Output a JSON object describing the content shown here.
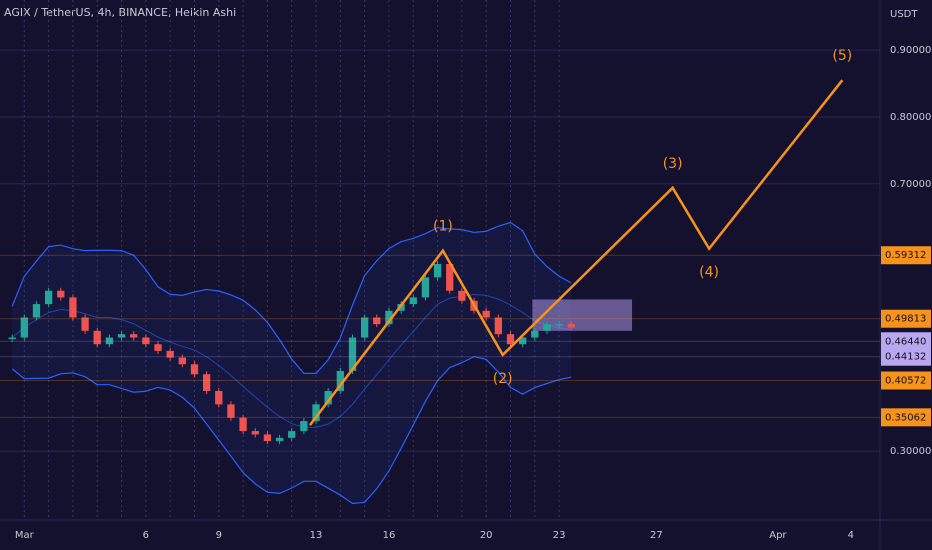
{
  "chart_data": {
    "type": "candlestick",
    "title": "AGIX / TetherUS, 4h, BINANCE, Heikin Ashi",
    "y_axis_label": "USDT",
    "xlim": [
      0,
      36.2
    ],
    "ylim": [
      0.197,
      0.975
    ],
    "xticks": [
      {
        "value": 1,
        "label": "Mar"
      },
      6,
      9,
      13,
      16,
      20,
      23,
      27,
      {
        "value": 32,
        "label": "Apr"
      },
      {
        "value": 35,
        "label": "4"
      }
    ],
    "yticks": [
      {
        "value": 0.3,
        "label": "0.30000"
      },
      {
        "value": 0.7,
        "label": "0.70000"
      },
      {
        "value": 0.8,
        "label": "0.80000"
      },
      {
        "value": 0.9,
        "label": "0.90000"
      }
    ],
    "grid": true,
    "price": {
      "up_color": "#26a69a",
      "down_color": "#ef5350",
      "x": [
        0.5,
        1,
        1.5,
        2,
        2.5,
        3,
        3.5,
        4,
        4.5,
        5,
        5.5,
        6,
        6.5,
        7,
        7.5,
        8,
        8.5,
        9,
        9.5,
        10,
        10.5,
        11,
        11.5,
        12,
        12.5,
        13,
        13.5,
        14,
        14.5,
        15,
        15.5,
        16,
        16.5,
        17,
        17.5,
        18,
        18.5,
        19,
        19.5,
        20,
        20.5,
        21,
        21.5,
        22,
        22.5,
        23,
        23.5
      ],
      "values": [
        0.47,
        0.5,
        0.52,
        0.54,
        0.53,
        0.5,
        0.48,
        0.46,
        0.47,
        0.475,
        0.47,
        0.46,
        0.45,
        0.44,
        0.43,
        0.415,
        0.39,
        0.37,
        0.35,
        0.33,
        0.325,
        0.315,
        0.32,
        0.33,
        0.345,
        0.37,
        0.39,
        0.42,
        0.47,
        0.5,
        0.49,
        0.51,
        0.52,
        0.53,
        0.56,
        0.58,
        0.54,
        0.525,
        0.51,
        0.5,
        0.475,
        0.46,
        0.47,
        0.48,
        0.49,
        0.49,
        0.485
      ]
    },
    "wave": {
      "color": "#f7931a",
      "x": [
        12.75,
        18.22,
        20.68,
        27.67,
        29.17,
        34.65
      ],
      "values": [
        0.339,
        0.6,
        0.444,
        0.694,
        0.603,
        0.855
      ],
      "labels": [
        null,
        "(1)",
        "(2)",
        "(3)",
        "(4)",
        "(5)"
      ]
    },
    "zone": {
      "color": "#9c8ad6",
      "x": [
        21.9,
        26.0
      ],
      "y": [
        0.48,
        0.527
      ]
    },
    "price_labels": [
      {
        "value": 0.59312,
        "label": "0.59312",
        "color": "#f7931a"
      },
      {
        "value": 0.49813,
        "label": "0.49813",
        "color": "#f7931a"
      },
      {
        "value": 0.4644,
        "label": "0.46440",
        "color": "#b9a8f0"
      },
      {
        "value": 0.44132,
        "label": "0.44132",
        "color": "#b9a8f0"
      },
      {
        "value": 0.40572,
        "label": "0.40572",
        "color": "#f7931a"
      },
      {
        "value": 0.35062,
        "label": "0.35062",
        "color": "#f7931a"
      }
    ]
  }
}
